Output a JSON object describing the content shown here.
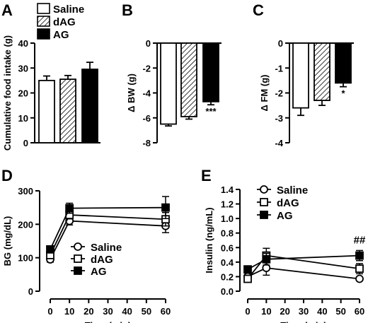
{
  "panels": {
    "A": {
      "label": "A"
    },
    "B": {
      "label": "B"
    },
    "C": {
      "label": "C"
    },
    "D": {
      "label": "D"
    },
    "E": {
      "label": "E"
    }
  },
  "legend_bar": [
    "Saline",
    "dAG",
    "AG"
  ],
  "colors": {
    "saline": "#ffffff",
    "dag": "hatched",
    "ag": "#000000",
    "axis": "#000000"
  },
  "chart_data": [
    {
      "panel": "A",
      "type": "bar",
      "categories": [
        "Saline",
        "dAG",
        "AG"
      ],
      "values": [
        25,
        25.5,
        29.5
      ],
      "errors": [
        1.8,
        1.5,
        2.8
      ],
      "ylabel": "Cumulative food intake (g)",
      "ylim": [
        0,
        40
      ],
      "yticks": [
        0,
        10,
        20,
        30,
        40
      ],
      "significance": [
        "",
        "",
        ""
      ]
    },
    {
      "panel": "B",
      "type": "bar",
      "categories": [
        "Saline",
        "dAG",
        "AG"
      ],
      "values": [
        -6.5,
        -5.9,
        -4.7
      ],
      "errors": [
        0.15,
        0.2,
        0.25
      ],
      "ylabel": "Δ BW (g)",
      "ylim": [
        -8,
        0
      ],
      "yticks": [
        0,
        -2,
        -4,
        -6,
        -8
      ],
      "significance": [
        "",
        "",
        "***"
      ]
    },
    {
      "panel": "C",
      "type": "bar",
      "categories": [
        "Saline",
        "dAG",
        "AG"
      ],
      "values": [
        -2.6,
        -2.3,
        -1.6
      ],
      "errors": [
        0.3,
        0.2,
        0.15
      ],
      "ylabel": "Δ FM (g)",
      "ylim": [
        -4,
        0
      ],
      "yticks": [
        0,
        -1,
        -2,
        -3,
        -4
      ],
      "significance": [
        "",
        "",
        "*"
      ]
    },
    {
      "panel": "D",
      "type": "line",
      "x": [
        0,
        10,
        60
      ],
      "xticks": [
        0,
        10,
        20,
        30,
        40,
        50,
        60
      ],
      "xlabel": "Time (min)",
      "ylabel": "BG (mg/dL)",
      "ylim": [
        0,
        300
      ],
      "yticks": [
        0,
        100,
        200,
        300
      ],
      "series": [
        {
          "name": "Saline",
          "values": [
            95,
            210,
            195
          ],
          "errors": [
            8,
            12,
            20
          ],
          "marker": "circle"
        },
        {
          "name": "dAG",
          "values": [
            108,
            228,
            215
          ],
          "errors": [
            8,
            12,
            20
          ],
          "marker": "square-open"
        },
        {
          "name": "AG",
          "values": [
            125,
            248,
            250
          ],
          "errors": [
            8,
            15,
            33
          ],
          "marker": "square-filled"
        }
      ],
      "annotation": ""
    },
    {
      "panel": "E",
      "type": "line",
      "x": [
        0,
        10,
        60
      ],
      "xticks": [
        0,
        10,
        20,
        30,
        40,
        50,
        60
      ],
      "xlabel": "Time (min)",
      "ylabel": "Insulin (ng/mL)",
      "ylim": [
        0,
        1.4
      ],
      "yticks": [
        0.0,
        0.2,
        0.4,
        0.6,
        0.8,
        1.0,
        1.2,
        1.4
      ],
      "ytick_labels": [
        "0.0",
        "0.2",
        "0.4",
        "0.6",
        "0.8",
        "1.0",
        "1.2",
        "1.4"
      ],
      "series": [
        {
          "name": "Saline",
          "values": [
            0.2,
            0.32,
            0.17
          ],
          "errors": [
            0.03,
            0.1,
            0.02
          ],
          "marker": "circle"
        },
        {
          "name": "dAG",
          "values": [
            0.17,
            0.49,
            0.31
          ],
          "errors": [
            0.02,
            0.1,
            0.07
          ],
          "marker": "square-open"
        },
        {
          "name": "AG",
          "values": [
            0.3,
            0.44,
            0.49
          ],
          "errors": [
            0.04,
            0.08,
            0.07
          ],
          "marker": "square-filled"
        }
      ],
      "annotation": "##"
    }
  ]
}
